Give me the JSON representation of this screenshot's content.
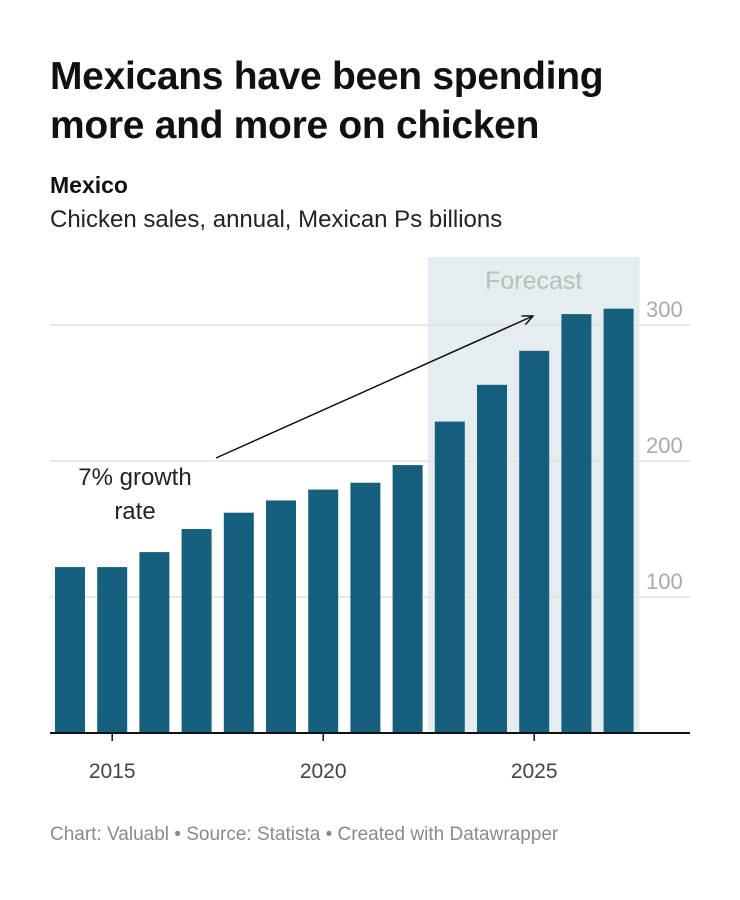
{
  "header": {
    "title": "Mexicans have been spending more and more on chicken",
    "subtitle_bold": "Mexico",
    "subtitle": "Chicken sales, annual, Mexican Ps billions"
  },
  "footer": {
    "text": "Chart: Valuabl • Source: Statista • Created with Datawrapper"
  },
  "chart_data": {
    "type": "bar",
    "x": [
      2014,
      2015,
      2016,
      2017,
      2018,
      2019,
      2020,
      2021,
      2022,
      2023,
      2024,
      2025,
      2026,
      2027
    ],
    "values": [
      122,
      122,
      133,
      150,
      162,
      171,
      179,
      184,
      197,
      229,
      256,
      281,
      308,
      312
    ],
    "x_tick_labels": [
      "2015",
      "2020",
      "2025"
    ],
    "x_ticks": [
      2015,
      2020,
      2025
    ],
    "y_ticks": [
      100,
      200,
      300
    ],
    "y_tick_labels": [
      "100",
      "200",
      "300"
    ],
    "ylim": [
      0,
      320
    ],
    "grid": true,
    "forecast_region": {
      "label": "Forecast",
      "from": 2023,
      "to": 2027
    },
    "annotation": {
      "text_line1": "7% growth",
      "text_line2": "rate"
    },
    "colors": {
      "bar": "#17607d",
      "forecast_bg": "#e6edee",
      "grid": "#e2e2e2",
      "tick_text": "#aaaaaa",
      "axis": "#111111"
    }
  }
}
